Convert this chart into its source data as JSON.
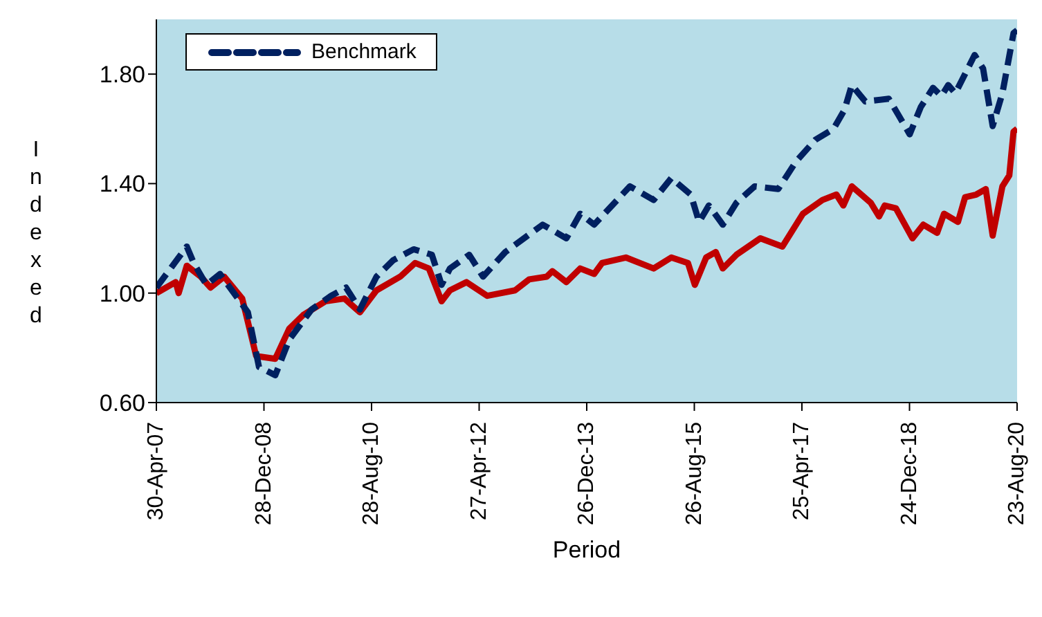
{
  "chart_data": {
    "type": "line",
    "xlabel": "Period",
    "ylabel": "Indexed",
    "xlim": [
      "2007-04-30",
      "2020-08-23"
    ],
    "xticks": [
      {
        "value": "2007-04-30",
        "label": "30-Apr-07"
      },
      {
        "value": "2008-12-28",
        "label": "28-Dec-08"
      },
      {
        "value": "2010-08-28",
        "label": "28-Aug-10"
      },
      {
        "value": "2012-04-27",
        "label": "27-Apr-12"
      },
      {
        "value": "2013-12-26",
        "label": "26-Dec-13"
      },
      {
        "value": "2015-08-26",
        "label": "26-Aug-15"
      },
      {
        "value": "2017-04-25",
        "label": "25-Apr-17"
      },
      {
        "value": "2018-12-24",
        "label": "24-Dec-18"
      },
      {
        "value": "2020-08-23",
        "label": "23-Aug-20"
      }
    ],
    "ylim": [
      0.6,
      2.0
    ],
    "yticks": [
      {
        "value": 0.6,
        "label": "0.60"
      },
      {
        "value": 1.0,
        "label": "1.00"
      },
      {
        "value": 1.4,
        "label": "1.40"
      },
      {
        "value": 1.8,
        "label": "1.80"
      }
    ],
    "grid": false,
    "legend": "top left",
    "marker": "none",
    "series": [
      {
        "color": "#c00000",
        "line_style": "solid",
        "x": [
          "2007-04-30",
          "2007-08-17",
          "2007-09-03",
          "2007-10-19",
          "2008-01-06",
          "2008-03-01",
          "2008-05-17",
          "2008-08-27",
          "2008-11-14",
          "2009-03-02",
          "2009-05-20",
          "2009-08-07",
          "2009-12-10",
          "2010-03-28",
          "2010-06-23",
          "2010-09-25",
          "2011-02-06",
          "2011-05-01",
          "2011-07-18",
          "2011-09-28",
          "2011-11-14",
          "2012-02-16",
          "2012-06-12",
          "2012-11-16",
          "2013-02-04",
          "2013-05-14",
          "2013-06-15",
          "2013-09-02",
          "2013-11-19",
          "2014-02-06",
          "2014-03-23",
          "2014-08-04",
          "2015-01-08",
          "2015-04-18",
          "2015-07-21",
          "2015-08-29",
          "2015-11-01",
          "2015-12-25",
          "2016-02-03",
          "2016-04-20",
          "2016-09-02",
          "2017-01-05",
          "2017-05-01",
          "2017-08-19",
          "2017-11-06",
          "2017-12-15",
          "2018-02-01",
          "2018-05-19",
          "2018-07-05",
          "2018-08-06",
          "2018-10-08",
          "2019-01-10",
          "2019-03-12",
          "2019-05-29",
          "2019-07-07",
          "2019-09-24",
          "2019-11-03",
          "2020-01-05",
          "2020-02-28",
          "2020-04-07",
          "2020-06-01",
          "2020-07-10",
          "2020-08-03",
          "2020-08-23"
        ],
        "values": [
          1.0,
          1.04,
          1.0,
          1.1,
          1.06,
          1.02,
          1.06,
          0.98,
          0.77,
          0.76,
          0.87,
          0.92,
          0.97,
          0.98,
          0.93,
          1.01,
          1.06,
          1.11,
          1.09,
          0.97,
          1.01,
          1.04,
          0.99,
          1.01,
          1.05,
          1.06,
          1.08,
          1.04,
          1.09,
          1.07,
          1.11,
          1.13,
          1.09,
          1.13,
          1.11,
          1.03,
          1.13,
          1.15,
          1.09,
          1.14,
          1.2,
          1.17,
          1.29,
          1.34,
          1.36,
          1.32,
          1.39,
          1.33,
          1.28,
          1.32,
          1.31,
          1.2,
          1.25,
          1.22,
          1.29,
          1.26,
          1.35,
          1.36,
          1.38,
          1.21,
          1.39,
          1.43,
          1.59,
          1.6
        ]
      },
      {
        "name": "Benchmark",
        "color": "#002060",
        "line_style": "dashed",
        "x": [
          "2007-04-30",
          "2007-10-19",
          "2007-11-27",
          "2008-02-07",
          "2008-04-24",
          "2008-07-11",
          "2008-09-28",
          "2008-11-30",
          "2009-03-02",
          "2009-05-20",
          "2009-09-23",
          "2010-01-11",
          "2010-04-06",
          "2010-06-23",
          "2010-09-25",
          "2010-12-28",
          "2011-04-23",
          "2011-08-04",
          "2011-09-28",
          "2011-11-14",
          "2012-03-02",
          "2012-05-19",
          "2012-09-22",
          "2013-04-21",
          "2013-09-02",
          "2013-11-19",
          "2014-02-06",
          "2014-08-27",
          "2015-01-08",
          "2015-04-18",
          "2015-08-06",
          "2015-09-22",
          "2015-11-16",
          "2016-02-03",
          "2016-04-20",
          "2016-08-01",
          "2016-12-12",
          "2017-03-22",
          "2017-07-10",
          "2017-10-21",
          "2017-12-22",
          "2018-02-01",
          "2018-04-18",
          "2018-08-29",
          "2018-10-23",
          "2018-12-25",
          "2019-02-26",
          "2019-05-06",
          "2019-06-22",
          "2019-07-31",
          "2019-09-09",
          "2019-12-27",
          "2020-02-13",
          "2020-04-07",
          "2020-06-01",
          "2020-08-03",
          "2020-08-23"
        ],
        "values": [
          1.02,
          1.17,
          1.11,
          1.03,
          1.07,
          1.0,
          0.93,
          0.73,
          0.7,
          0.83,
          0.94,
          0.99,
          1.02,
          0.94,
          1.06,
          1.12,
          1.16,
          1.14,
          1.03,
          1.09,
          1.14,
          1.06,
          1.15,
          1.25,
          1.2,
          1.29,
          1.25,
          1.39,
          1.34,
          1.42,
          1.36,
          1.26,
          1.32,
          1.25,
          1.33,
          1.39,
          1.38,
          1.48,
          1.56,
          1.6,
          1.67,
          1.76,
          1.7,
          1.71,
          1.65,
          1.58,
          1.68,
          1.75,
          1.72,
          1.76,
          1.73,
          1.87,
          1.82,
          1.61,
          1.73,
          1.95,
          1.96
        ]
      }
    ]
  }
}
